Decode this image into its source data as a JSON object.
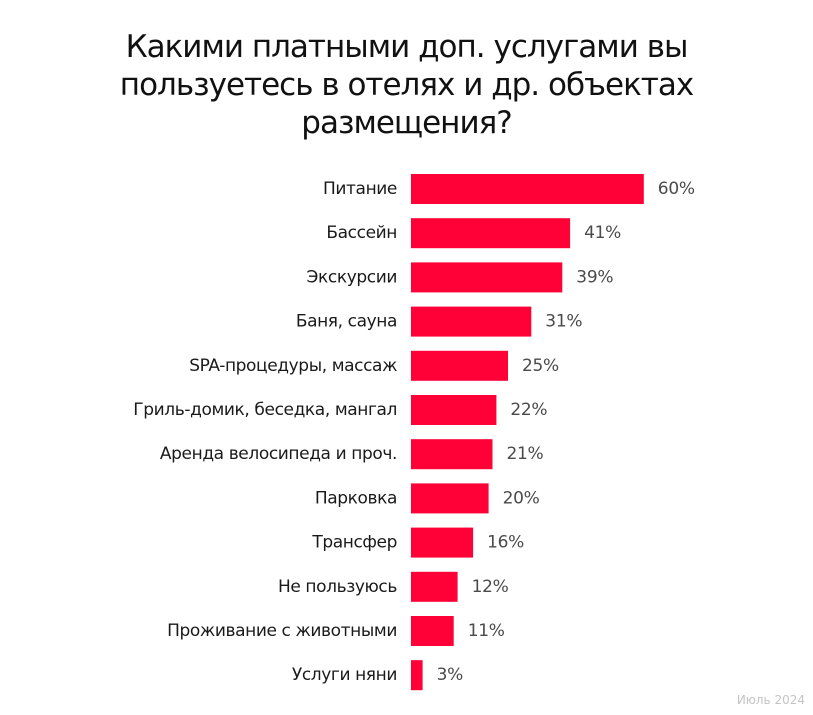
{
  "title_lines": [
    "Какими платными доп. услугами вы",
    "пользуетесь в отелях и др. объектах",
    "размещения?"
  ],
  "footnote": "Июль 2024",
  "colors": {
    "bar": "#ff0037",
    "text": "#1a1a1a",
    "value_text": "#4a4a4a",
    "footnote": "#c4c4c4"
  },
  "chart_data": {
    "type": "bar",
    "orientation": "horizontal",
    "title": "Какими платными доп. услугами вы пользуетесь в отелях и др. объектах размещения?",
    "categories": [
      "Питание",
      "Бассейн",
      "Экскурсии",
      "Баня, сауна",
      "SPA-процедуры, массаж",
      "Гриль-домик, беседка, мангал",
      "Аренда велосипеда и проч.",
      "Парковка",
      "Трансфер",
      "Не пользуюсь",
      "Проживание с животными",
      "Услуги няни"
    ],
    "values": [
      60,
      41,
      39,
      31,
      25,
      22,
      21,
      20,
      16,
      12,
      11,
      3
    ],
    "value_labels": [
      "60%",
      "41%",
      "39%",
      "31%",
      "25%",
      "22%",
      "21%",
      "20%",
      "16%",
      "12%",
      "11%",
      "3%"
    ],
    "unit": "%",
    "xlabel": "",
    "ylabel": "",
    "grid": false,
    "legend": "none"
  }
}
